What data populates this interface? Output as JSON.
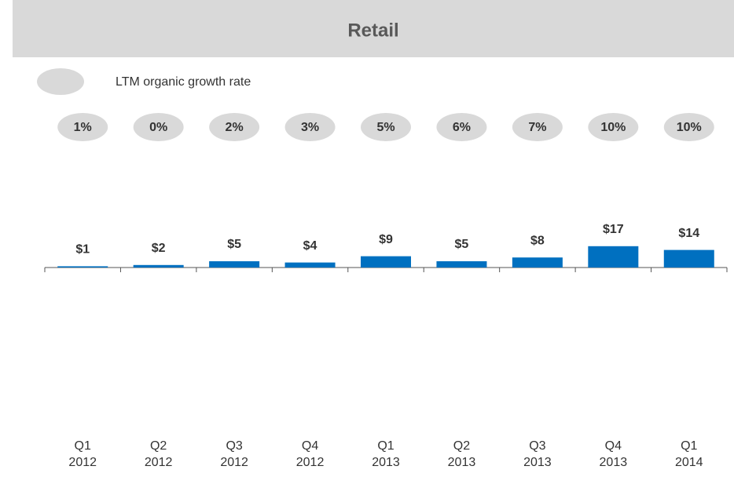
{
  "chart_data": {
    "type": "bar",
    "title": "Retail",
    "categories": [
      "Q1 2012",
      "Q2 2012",
      "Q3 2012",
      "Q4 2012",
      "Q1 2013",
      "Q2 2013",
      "Q3 2013",
      "Q4 2013",
      "Q1 2014"
    ],
    "values": [
      1,
      2,
      5,
      4,
      9,
      5,
      8,
      17,
      14
    ],
    "value_labels": [
      "$1",
      "$2",
      "$5",
      "$4",
      "$9",
      "$5",
      "$8",
      "$17",
      "$14"
    ],
    "color": "#0070c0",
    "growth": {
      "name": "LTM organic growth rate",
      "color": "#d9d9d9",
      "values": [
        1,
        0,
        2,
        3,
        5,
        6,
        7,
        10,
        10
      ],
      "value_labels": [
        "1%",
        "0%",
        "2%",
        "3%",
        "5%",
        "6%",
        "7%",
        "10%",
        "10%"
      ]
    }
  }
}
